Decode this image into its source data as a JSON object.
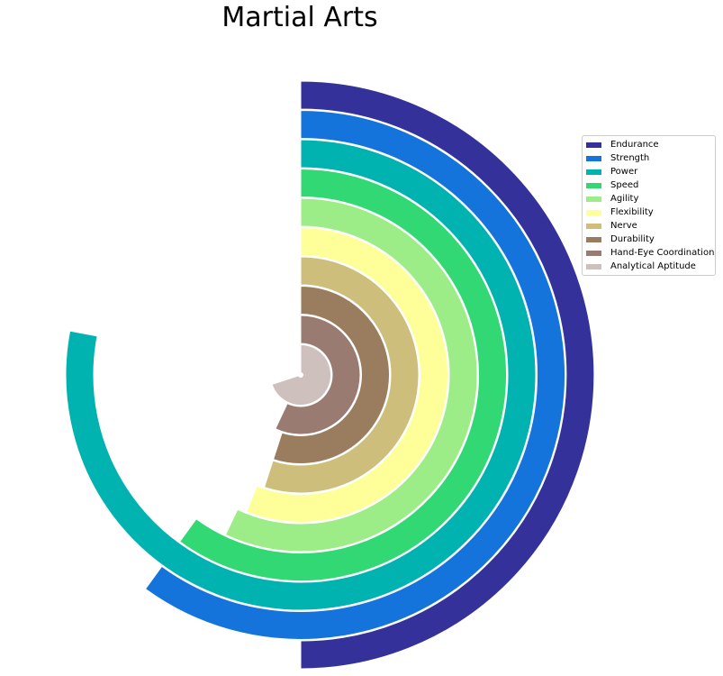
{
  "chart_data": {
    "type": "radial-bar",
    "title": "Martial Arts",
    "max_value": 100,
    "legend_position": "right",
    "series": [
      {
        "name": "Endurance",
        "value": 50,
        "color": "#35319a"
      },
      {
        "name": "Strength",
        "value": 60,
        "color": "#1574dc"
      },
      {
        "name": "Power",
        "value": 78,
        "color": "#00b3b0"
      },
      {
        "name": "Speed",
        "value": 60,
        "color": "#31d874"
      },
      {
        "name": "Agility",
        "value": 57,
        "color": "#9ced87"
      },
      {
        "name": "Flexibility",
        "value": 56,
        "color": "#feff99"
      },
      {
        "name": "Nerve",
        "value": 55,
        "color": "#cdbe7c"
      },
      {
        "name": "Durability",
        "value": 55,
        "color": "#9a7c5f"
      },
      {
        "name": "Hand-Eye Coordination",
        "value": 57,
        "color": "#997b72"
      },
      {
        "name": "Analytical Aptitude",
        "value": 70,
        "color": "#cec0bc"
      }
    ]
  }
}
